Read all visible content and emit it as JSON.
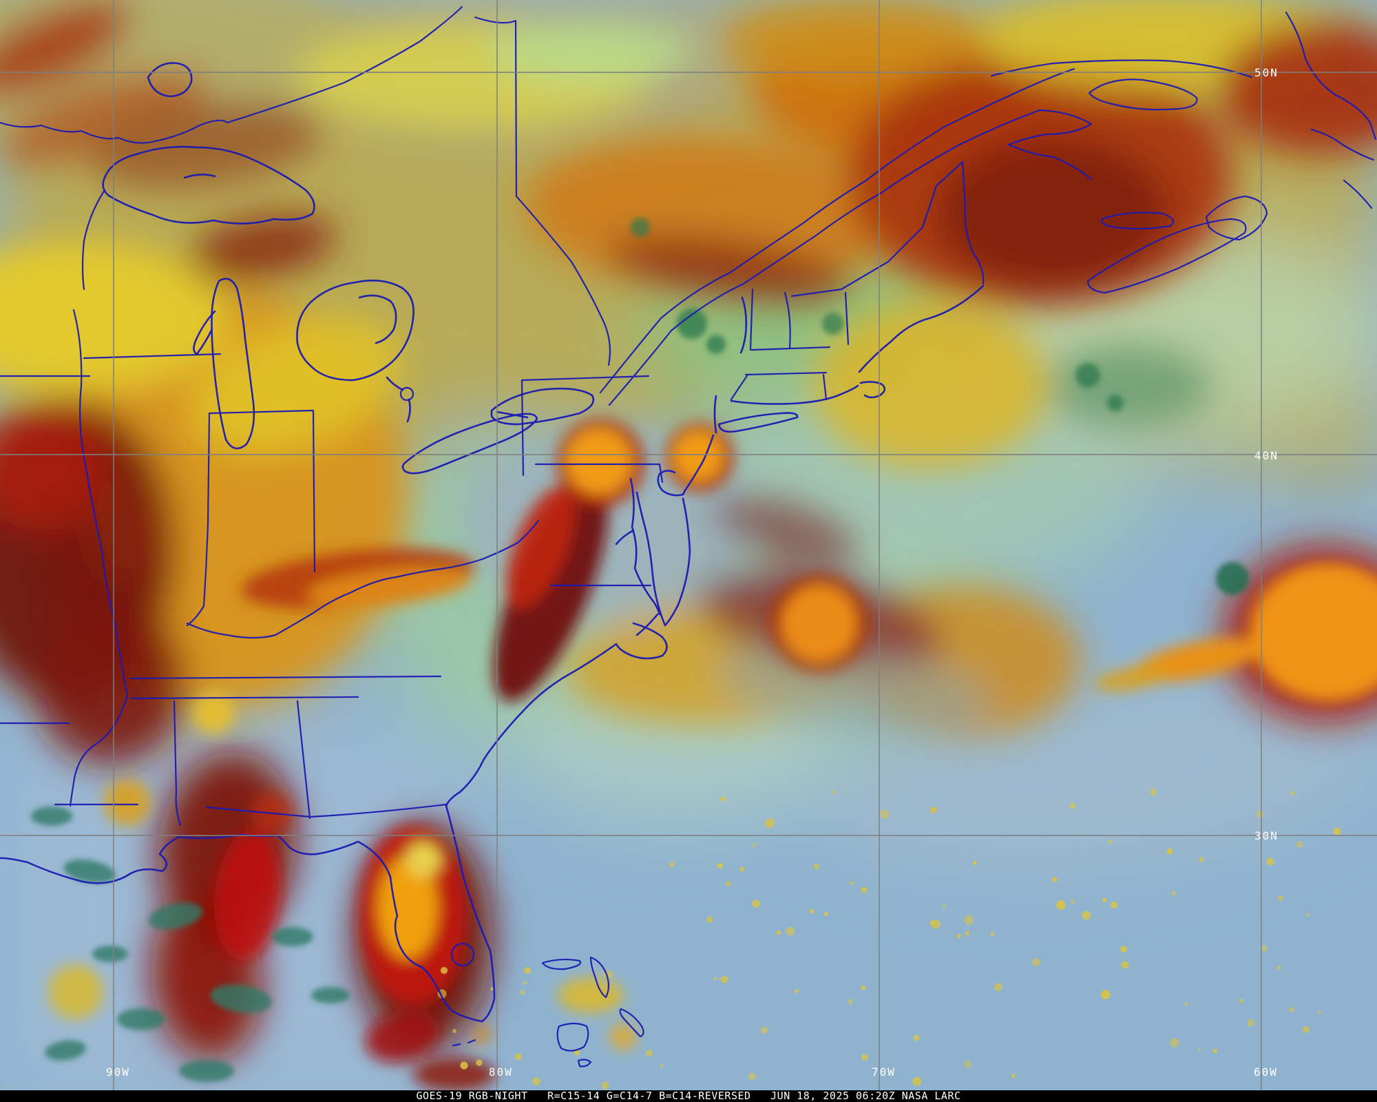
{
  "map": {
    "caption": {
      "full": "GOES-19 RGB-NIGHT   R=C15-14 G=C14-7 B=C14-REVERSED   JUN 18, 2025 06:20Z NASA LARC",
      "product": "GOES-19 RGB-NIGHT",
      "channel_recipe": "R=C15-14 G=C14-7 B=C14-REVERSED",
      "timestamp": "JUN 18, 2025 06:20Z",
      "credit": "NASA LARC"
    },
    "grid": {
      "latitude_labels": [
        "50N",
        "40N",
        "30N"
      ],
      "longitude_labels": [
        "90W",
        "80W",
        "70W",
        "60W"
      ]
    },
    "colors": {
      "border": "#1a1ab2",
      "ocean": "#8fb3cf",
      "label_text": "#ffffff",
      "caption_background": "#000000",
      "warm_cloud_orange": "#d8931d",
      "cold_cloud_red": "#a81c08",
      "storm_maroon": "#700d06",
      "low_cloud_teal": "#9cc7a4",
      "yellow_cloud": "#e2c92f"
    }
  }
}
